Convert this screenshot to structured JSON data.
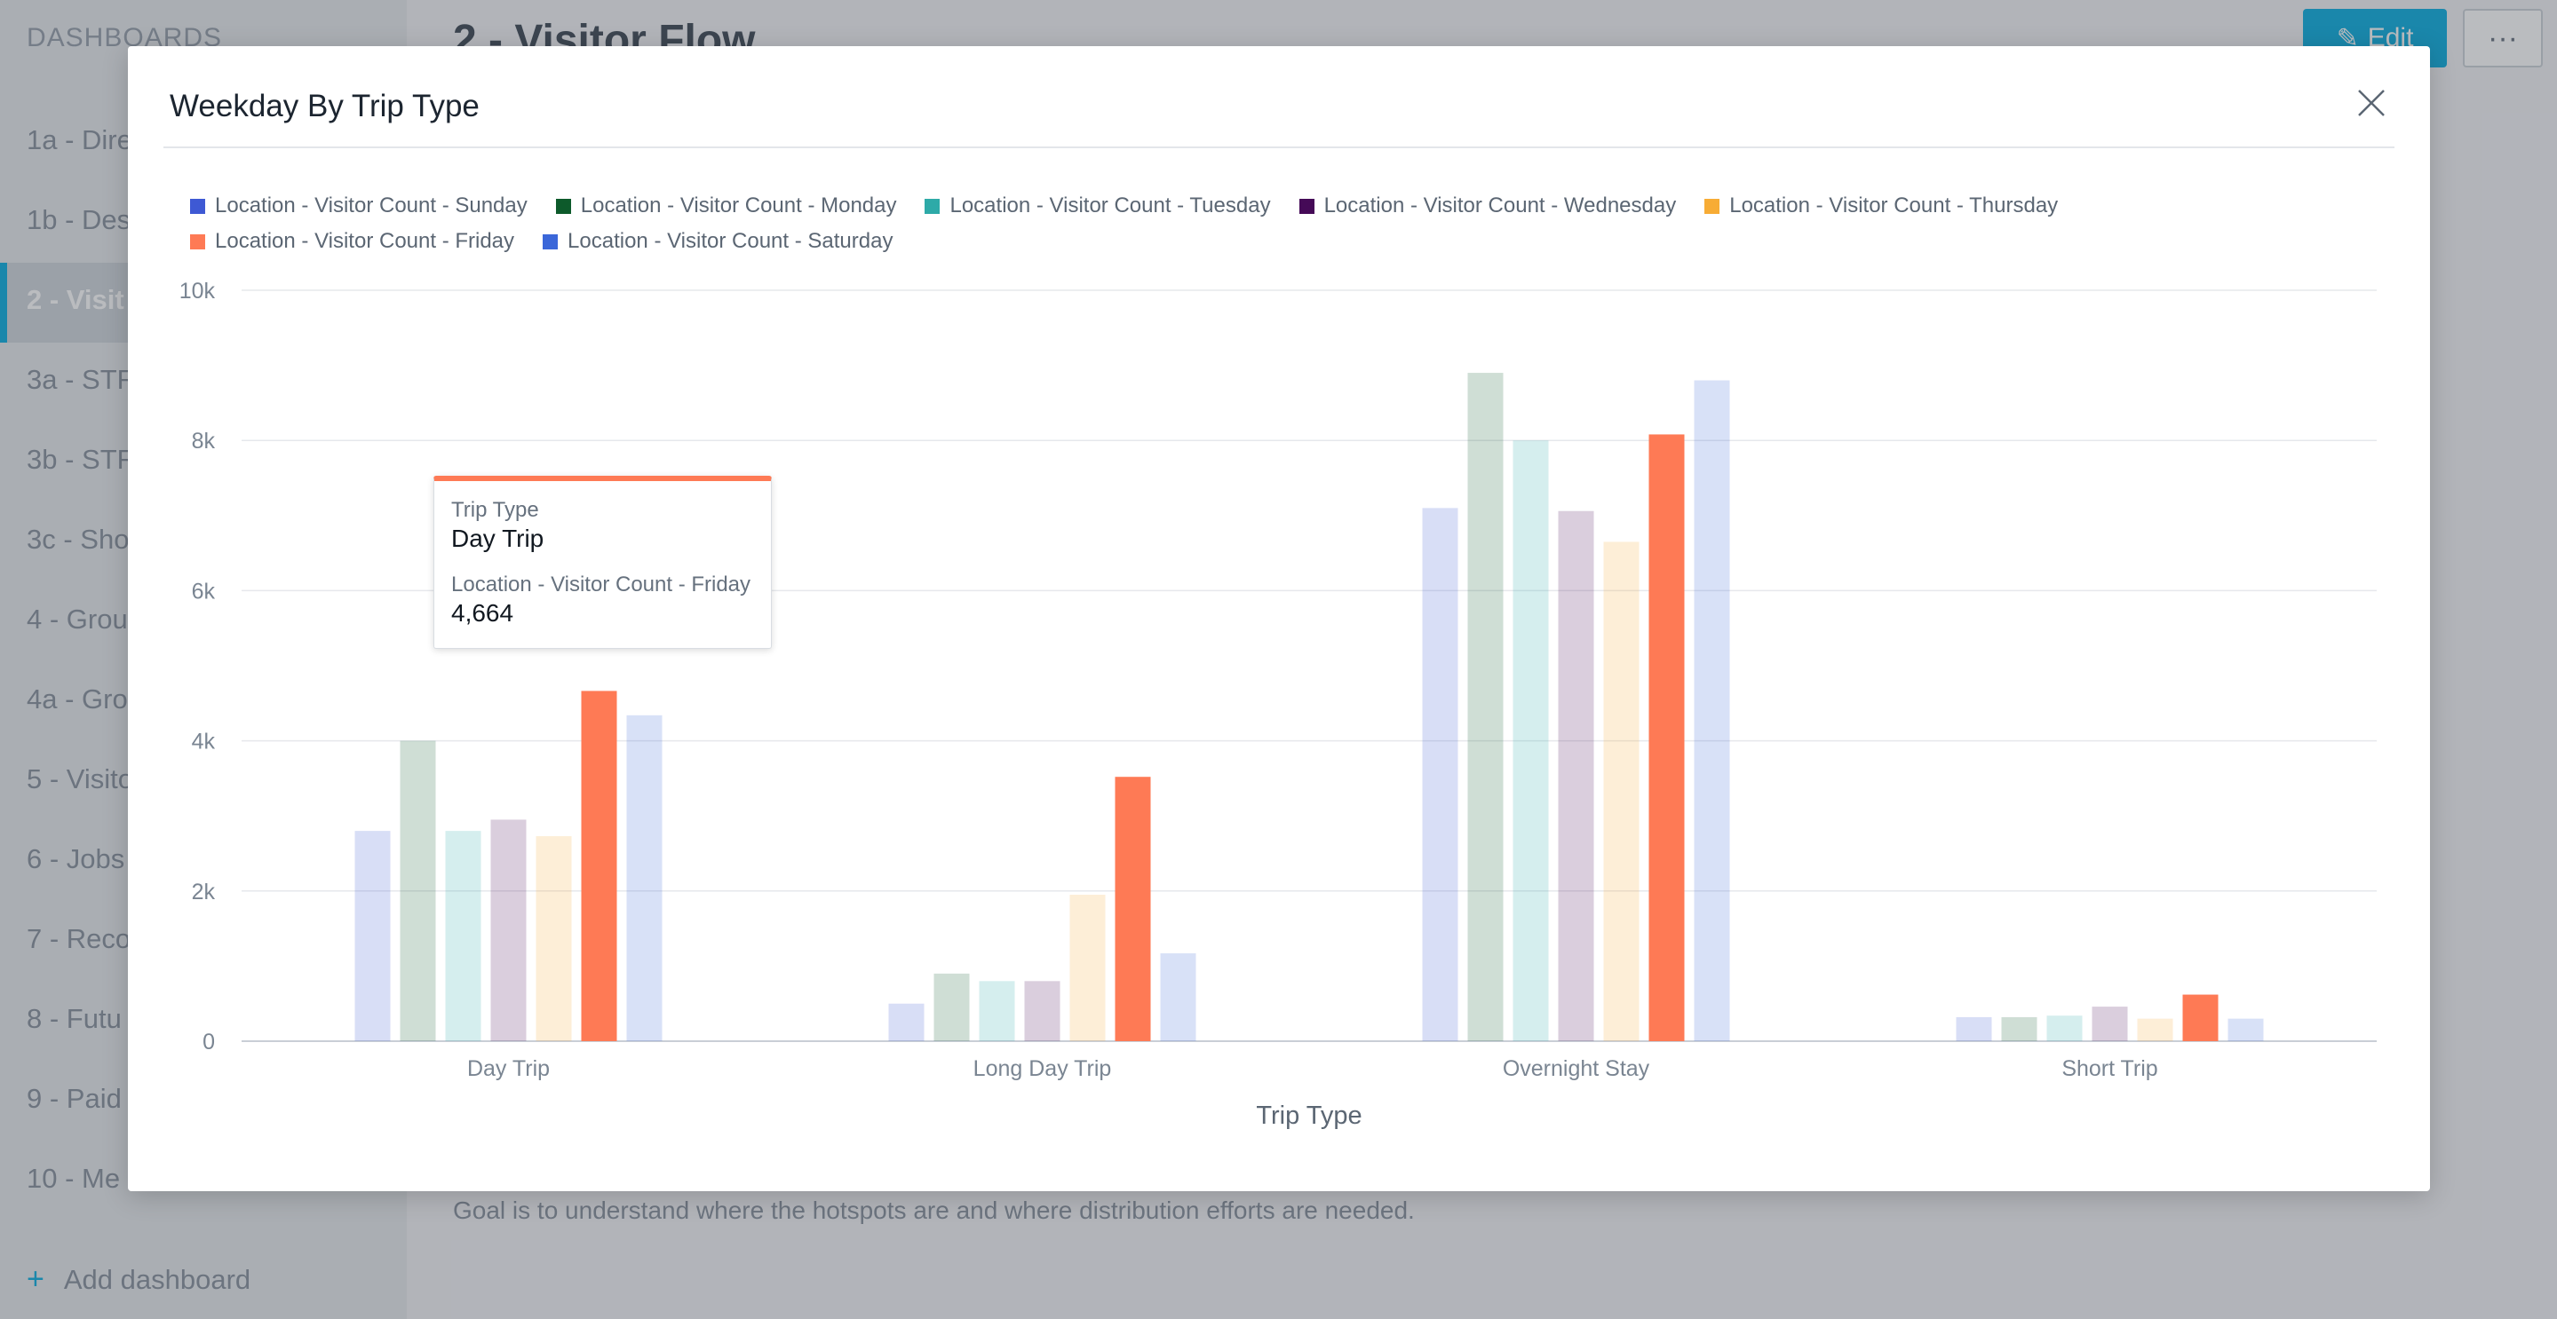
{
  "sidebar": {
    "header": "DASHBOARDS",
    "items": [
      {
        "label": "1a - Dire"
      },
      {
        "label": "1b - Dest"
      },
      {
        "label": "2 - Visit"
      },
      {
        "label": "3a - STR"
      },
      {
        "label": "3b - STR"
      },
      {
        "label": "3c - Sho"
      },
      {
        "label": "4 - Grou"
      },
      {
        "label": "4a - Gro"
      },
      {
        "label": "5 - Visito"
      },
      {
        "label": "6 - Jobs"
      },
      {
        "label": "7 - Reco"
      },
      {
        "label": "8 - Futu"
      },
      {
        "label": "9 - Paid"
      },
      {
        "label": "10 - Me"
      }
    ],
    "add_dashboard": "Add dashboard"
  },
  "main": {
    "title": "2 - Visitor Flow",
    "edit_label": "Edit",
    "more_label": "···",
    "description": "Goal is to understand where the hotspots are and where distribution efforts are needed."
  },
  "modal": {
    "title": "Weekday By Trip Type"
  },
  "tooltip": {
    "label1": "Trip Type",
    "value1": "Day Trip",
    "label2": "Location - Visitor Count - Friday",
    "value2": "4,664"
  },
  "colors": {
    "sunday": "#3e59d4",
    "monday": "#0d5a2b",
    "tuesday": "#2eaaa8",
    "wednesday": "#450a57",
    "thursday": "#f7ac35",
    "friday": "#fe7a55",
    "saturday": "#3b67d9"
  },
  "chart_data": {
    "type": "bar",
    "title": "Weekday By Trip Type",
    "xlabel": "Trip Type",
    "ylabel": "",
    "categories": [
      "Day Trip",
      "Long Day Trip",
      "Overnight Stay",
      "Short Trip"
    ],
    "ylim": [
      0,
      10000
    ],
    "yticks": [
      "0",
      "2k",
      "4k",
      "6k",
      "8k",
      "10k"
    ],
    "grid": true,
    "legend_position": "top",
    "highlighted_series": "Location - Visitor Count - Friday",
    "series": [
      {
        "name": "Location - Visitor Count - Sunday",
        "color": "#3e59d4",
        "values": [
          2800,
          500,
          7100,
          320
        ]
      },
      {
        "name": "Location - Visitor Count - Monday",
        "color": "#0d5a2b",
        "values": [
          4000,
          900,
          8900,
          320
        ]
      },
      {
        "name": "Location - Visitor Count - Tuesday",
        "color": "#2eaaa8",
        "values": [
          2800,
          800,
          8000,
          340
        ]
      },
      {
        "name": "Location - Visitor Count - Wednesday",
        "color": "#450a57",
        "values": [
          2950,
          800,
          7060,
          460
        ]
      },
      {
        "name": "Location - Visitor Count - Thursday",
        "color": "#f7ac35",
        "values": [
          2730,
          1950,
          6650,
          300
        ]
      },
      {
        "name": "Location - Visitor Count - Friday",
        "color": "#fe7a55",
        "values": [
          4664,
          3520,
          8080,
          620
        ]
      },
      {
        "name": "Location - Visitor Count - Saturday",
        "color": "#3b67d9",
        "values": [
          4340,
          1170,
          8800,
          300
        ]
      }
    ]
  }
}
